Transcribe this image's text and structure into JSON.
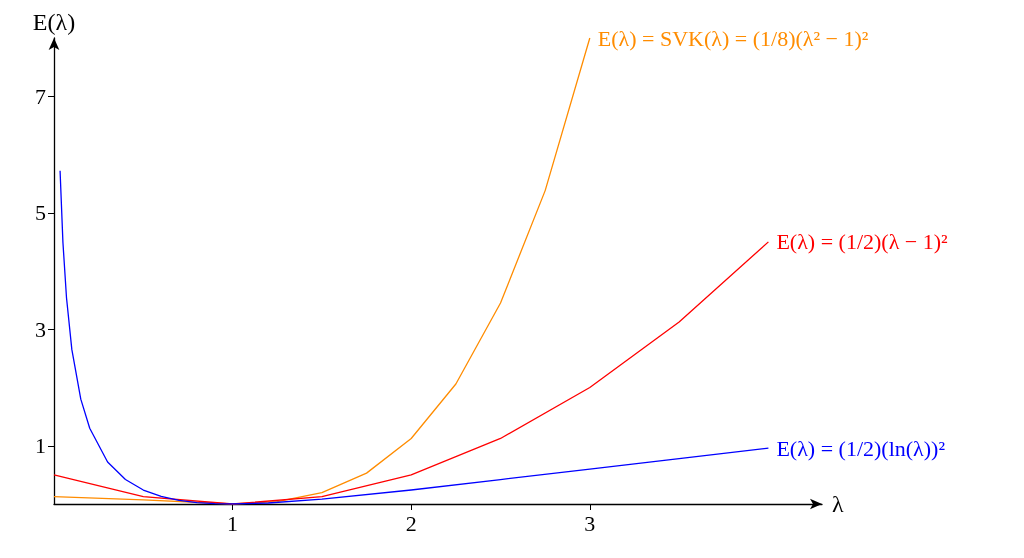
{
  "chart_data": {
    "type": "line",
    "xlabel": "λ",
    "ylabel": "E(λ)",
    "xlim": [
      0,
      4.3
    ],
    "ylim": [
      0,
      8
    ],
    "xticks": [
      1,
      2,
      3
    ],
    "yticks": [
      1,
      3,
      5,
      7
    ],
    "grid": false,
    "legend": false,
    "marker": "none",
    "line_style": "solid",
    "series": [
      {
        "name": "E(λ) = SVK(λ) = (1/8)(λ² − 1)²",
        "color": "#ff8c00",
        "x": [
          0,
          0.5,
          1,
          1.25,
          1.5,
          1.75,
          2,
          2.25,
          2.5,
          2.75,
          3
        ],
        "values": [
          0.125,
          0.07,
          0,
          0.04,
          0.195,
          0.53,
          1.125,
          2.06,
          3.45,
          5.38,
          8
        ]
      },
      {
        "name": "E(λ) = (1/2)(λ − 1)²",
        "color": "#ff0000",
        "x": [
          0,
          0.5,
          1,
          1.5,
          2,
          2.5,
          3,
          3.5,
          4
        ],
        "values": [
          0.5,
          0.125,
          0,
          0.125,
          0.5,
          1.125,
          2,
          3.125,
          4.5
        ]
      },
      {
        "name": "E(λ) = (1/2)(ln(λ))²",
        "color": "#0000ff",
        "x": [
          0.034,
          0.05,
          0.07,
          0.1,
          0.15,
          0.2,
          0.3,
          0.4,
          0.5,
          0.6,
          0.7,
          0.8,
          0.9,
          1,
          1.2,
          1.5,
          2,
          2.5,
          3,
          3.5,
          4
        ],
        "values": [
          5.72,
          4.49,
          3.54,
          2.65,
          1.8,
          1.3,
          0.72,
          0.42,
          0.24,
          0.13,
          0.064,
          0.025,
          0.006,
          0,
          0.017,
          0.082,
          0.24,
          0.42,
          0.6,
          0.78,
          0.96
        ]
      }
    ]
  }
}
